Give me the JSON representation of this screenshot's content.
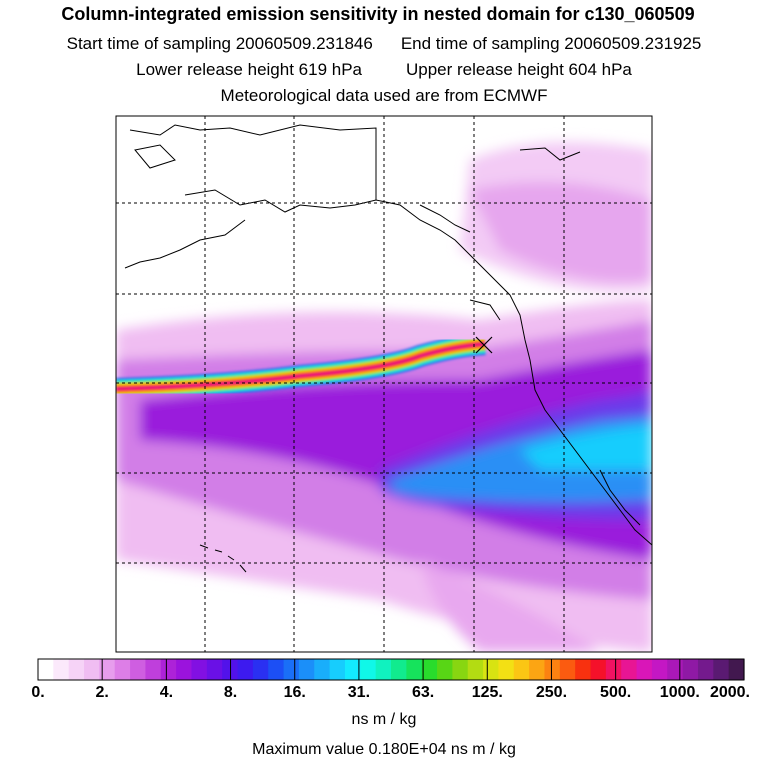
{
  "header": {
    "title": "Column-integrated emission sensitivity in nested domain for c130_060509",
    "start_label": "Start time of sampling 20060509.231846",
    "end_label": "End time of sampling 20060509.231925",
    "lower_label": "Lower release height  619 hPa",
    "upper_label": "Upper release height  604 hPa",
    "met_label": "Meteorological data used are from ECMWF"
  },
  "colorbar": {
    "tick_labels": [
      "0.",
      "2.",
      "4.",
      "8.",
      "16.",
      "31.",
      "63.",
      "125.",
      "250.",
      "500.",
      "1000.",
      "2000."
    ],
    "colors": [
      "#ffffff",
      "#fbe9fb",
      "#f6d3f7",
      "#f0bdf2",
      "#e79ded",
      "#dd7ee7",
      "#cf5ee1",
      "#bf3fdc",
      "#ad22d8",
      "#9b13dd",
      "#8210e2",
      "#6a10e6",
      "#5212ea",
      "#3d1aef",
      "#2a30f2",
      "#1c4ff5",
      "#1a6ff7",
      "#1b8ff9",
      "#19aefb",
      "#17cdfd",
      "#13eafe",
      "#10f8e8",
      "#10f2bf",
      "#11eb8e",
      "#16e35c",
      "#29dc2c",
      "#58d615",
      "#88d611",
      "#b3dc12",
      "#d8e312",
      "#f3e014",
      "#fbc614",
      "#fca513",
      "#fc8211",
      "#fb5b10",
      "#f8310f",
      "#f5112a",
      "#f01262",
      "#e81594",
      "#d916b8",
      "#c417c4",
      "#aa18b8",
      "#8f19a5",
      "#741a8d",
      "#5a1a72",
      "#42184f"
    ]
  },
  "units_label": "ns m / kg",
  "max_label": "Maximum value  0.180E+04 ns m / kg"
}
